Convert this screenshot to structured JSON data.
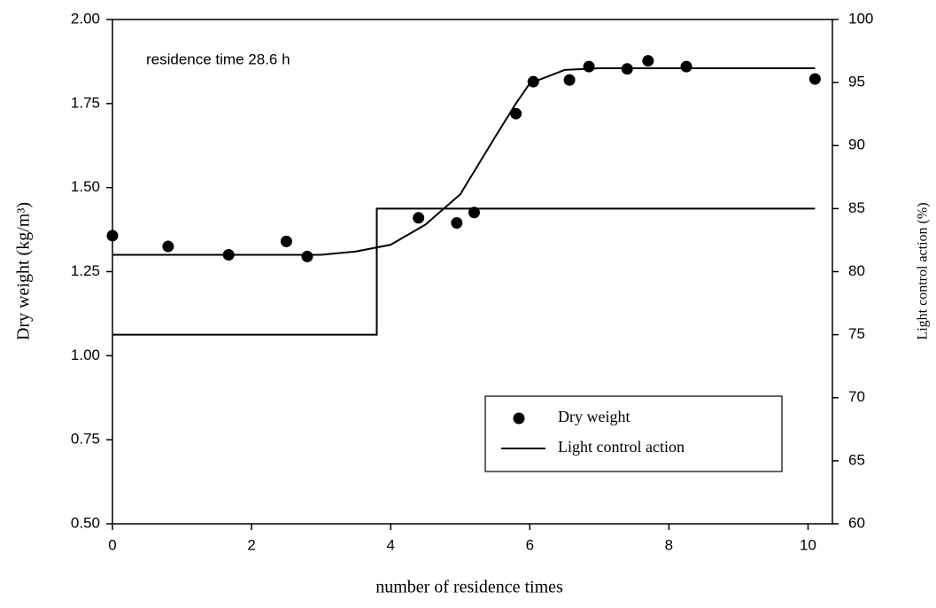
{
  "chart_data": {
    "type": "scatter",
    "annotation": "residence time 28.6 h",
    "xlabel": "number of residence times",
    "ylabel": "Dry weight (kg/m³)",
    "y2label": "Light control action (%)",
    "xlim": [
      0,
      10.35
    ],
    "xticks": [
      0,
      2,
      4,
      6,
      8,
      10
    ],
    "ylim": [
      0.5,
      2.0
    ],
    "yticks": [
      {
        "value": 0.5,
        "label": "0.50"
      },
      {
        "value": 0.75,
        "label": "0.75"
      },
      {
        "value": 1.0,
        "label": "1.00"
      },
      {
        "value": 1.25,
        "label": "1.25"
      },
      {
        "value": 1.5,
        "label": "1.50"
      },
      {
        "value": 1.75,
        "label": "1.75"
      },
      {
        "value": 2.0,
        "label": "2.00"
      }
    ],
    "y2lim": [
      60,
      100
    ],
    "y2ticks": [
      60,
      65,
      70,
      75,
      80,
      85,
      90,
      95,
      100
    ],
    "grid": false,
    "legend": "lower right",
    "series": [
      {
        "type": "scatter",
        "name": "Dry weight",
        "color": "#000000",
        "x": [
          0,
          0.8,
          1.67,
          2.5,
          2.8,
          4.4,
          4.95,
          5.2,
          5.8,
          6.05,
          6.57,
          6.85,
          7.4,
          7.7,
          8.25,
          10.1
        ],
        "values": [
          1.357,
          1.325,
          1.3,
          1.34,
          1.295,
          1.41,
          1.395,
          1.426,
          1.72,
          1.815,
          1.82,
          1.86,
          1.853,
          1.877,
          1.86,
          1.823
        ]
      },
      {
        "type": "line",
        "color": "#000000",
        "x": [
          0,
          1,
          2,
          3,
          3.5,
          4,
          4.5,
          5,
          5.5,
          5.8,
          6,
          6.5,
          7,
          8,
          9,
          10.1
        ],
        "values": [
          1.3,
          1.3,
          1.3,
          1.3,
          1.31,
          1.33,
          1.39,
          1.48,
          1.65,
          1.75,
          1.81,
          1.85,
          1.855,
          1.855,
          1.855,
          1.855
        ]
      },
      {
        "type": "line",
        "name": "Light control action",
        "color": "#000000",
        "axis": "y2",
        "x": [
          0,
          3.8,
          3.8,
          10.1
        ],
        "values": [
          75,
          75,
          85,
          85
        ]
      }
    ]
  }
}
